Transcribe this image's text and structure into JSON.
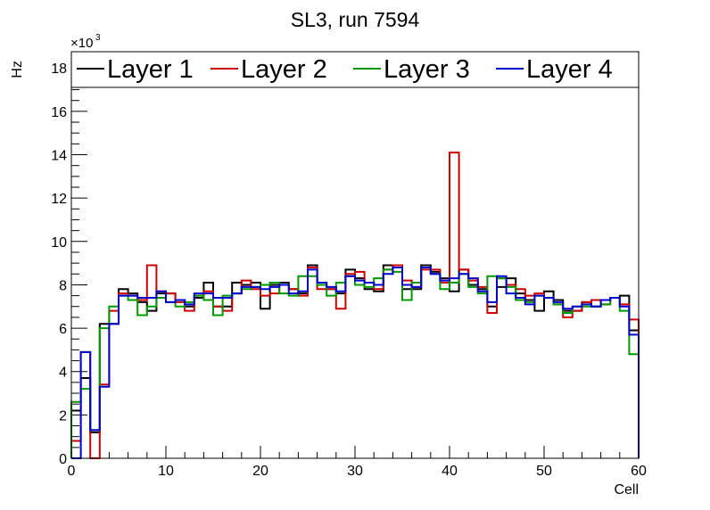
{
  "chart_data": {
    "type": "line",
    "style": "step-histogram",
    "title": "SL3, run 7594",
    "xlabel": "Cell",
    "ylabel": "Hz",
    "y_multiplier": "10^3",
    "y_multiplier_base": "×10",
    "y_multiplier_exp": "3",
    "xlim": [
      0,
      60
    ],
    "ylim": [
      0,
      18.75
    ],
    "x_ticks": [
      0,
      10,
      20,
      30,
      40,
      50,
      60
    ],
    "x_tick_labels": [
      "0",
      "10",
      "20",
      "30",
      "40",
      "50",
      "60"
    ],
    "y_ticks": [
      0,
      2,
      4,
      6,
      8,
      10,
      12,
      14,
      16,
      18
    ],
    "y_tick_labels": [
      "0",
      "2",
      "4",
      "6",
      "8",
      "10",
      "12",
      "14",
      "16",
      "18"
    ],
    "bin_edges_start": 0,
    "bin_width": 1,
    "legend_position": "top",
    "series": [
      {
        "name": "Layer 1",
        "color": "#000000",
        "values": [
          2.2,
          3.7,
          1.2,
          6.2,
          6.2,
          7.8,
          7.6,
          7.2,
          6.8,
          7.6,
          7.6,
          7.3,
          7.0,
          7.4,
          8.1,
          7.0,
          7.0,
          8.1,
          8.0,
          8.1,
          6.9,
          8.0,
          8.1,
          7.8,
          7.6,
          8.9,
          8.0,
          7.8,
          7.6,
          8.7,
          8.3,
          7.8,
          7.7,
          8.9,
          8.9,
          7.8,
          7.8,
          8.9,
          8.6,
          8.3,
          7.7,
          8.7,
          8.0,
          7.8,
          7.0,
          7.9,
          8.3,
          7.6,
          7.3,
          6.8,
          7.7,
          7.3,
          6.8,
          6.8,
          7.2,
          7.0,
          7.3,
          7.4,
          7.5,
          5.9
        ]
      },
      {
        "name": "Layer 2",
        "color": "#cc0000",
        "values": [
          0.8,
          4.9,
          0.0,
          3.4,
          6.8,
          7.6,
          7.5,
          7.3,
          8.9,
          7.7,
          7.6,
          7.2,
          6.8,
          7.5,
          7.7,
          7.0,
          6.8,
          7.6,
          8.2,
          7.8,
          7.5,
          7.6,
          8.0,
          7.8,
          7.5,
          8.8,
          7.8,
          7.8,
          6.9,
          8.5,
          8.6,
          8.1,
          7.8,
          8.7,
          8.9,
          8.2,
          7.9,
          8.7,
          8.7,
          8.1,
          14.1,
          8.7,
          8.2,
          7.9,
          6.7,
          8.3,
          8.0,
          7.8,
          7.5,
          7.6,
          7.4,
          7.1,
          6.5,
          6.8,
          7.2,
          7.3,
          7.1,
          7.4,
          7.1,
          6.4
        ]
      },
      {
        "name": "Layer 3",
        "color": "#009900",
        "values": [
          2.6,
          3.2,
          1.3,
          6.0,
          7.0,
          7.5,
          7.3,
          6.6,
          7.0,
          7.4,
          7.2,
          7.0,
          7.2,
          7.5,
          7.3,
          6.6,
          7.5,
          7.6,
          7.8,
          7.9,
          8.0,
          8.1,
          7.6,
          7.5,
          8.4,
          8.4,
          8.0,
          7.5,
          8.1,
          8.4,
          8.0,
          7.9,
          8.3,
          8.7,
          8.6,
          7.3,
          8.1,
          8.8,
          8.5,
          7.8,
          8.1,
          8.5,
          7.9,
          7.6,
          8.4,
          8.3,
          7.9,
          7.3,
          7.2,
          7.5,
          7.4,
          7.1,
          6.7,
          7.0,
          7.0,
          7.0,
          7.1,
          7.4,
          6.8,
          4.8
        ]
      },
      {
        "name": "Layer 4",
        "color": "#0000cc",
        "values": [
          0.0,
          4.9,
          1.3,
          3.3,
          6.2,
          7.5,
          7.5,
          7.4,
          7.4,
          7.7,
          7.2,
          7.3,
          7.1,
          7.6,
          7.6,
          7.4,
          7.4,
          7.6,
          7.9,
          7.9,
          7.8,
          7.9,
          8.0,
          7.6,
          7.7,
          8.7,
          8.1,
          7.9,
          7.7,
          8.4,
          8.2,
          8.1,
          8.0,
          8.5,
          8.8,
          8.0,
          7.9,
          8.8,
          8.5,
          8.2,
          8.3,
          8.5,
          8.3,
          7.7,
          7.2,
          8.4,
          7.6,
          7.4,
          7.1,
          7.5,
          7.4,
          7.2,
          6.9,
          7.0,
          7.1,
          7.0,
          7.3,
          7.4,
          7.0,
          5.7
        ]
      }
    ]
  }
}
